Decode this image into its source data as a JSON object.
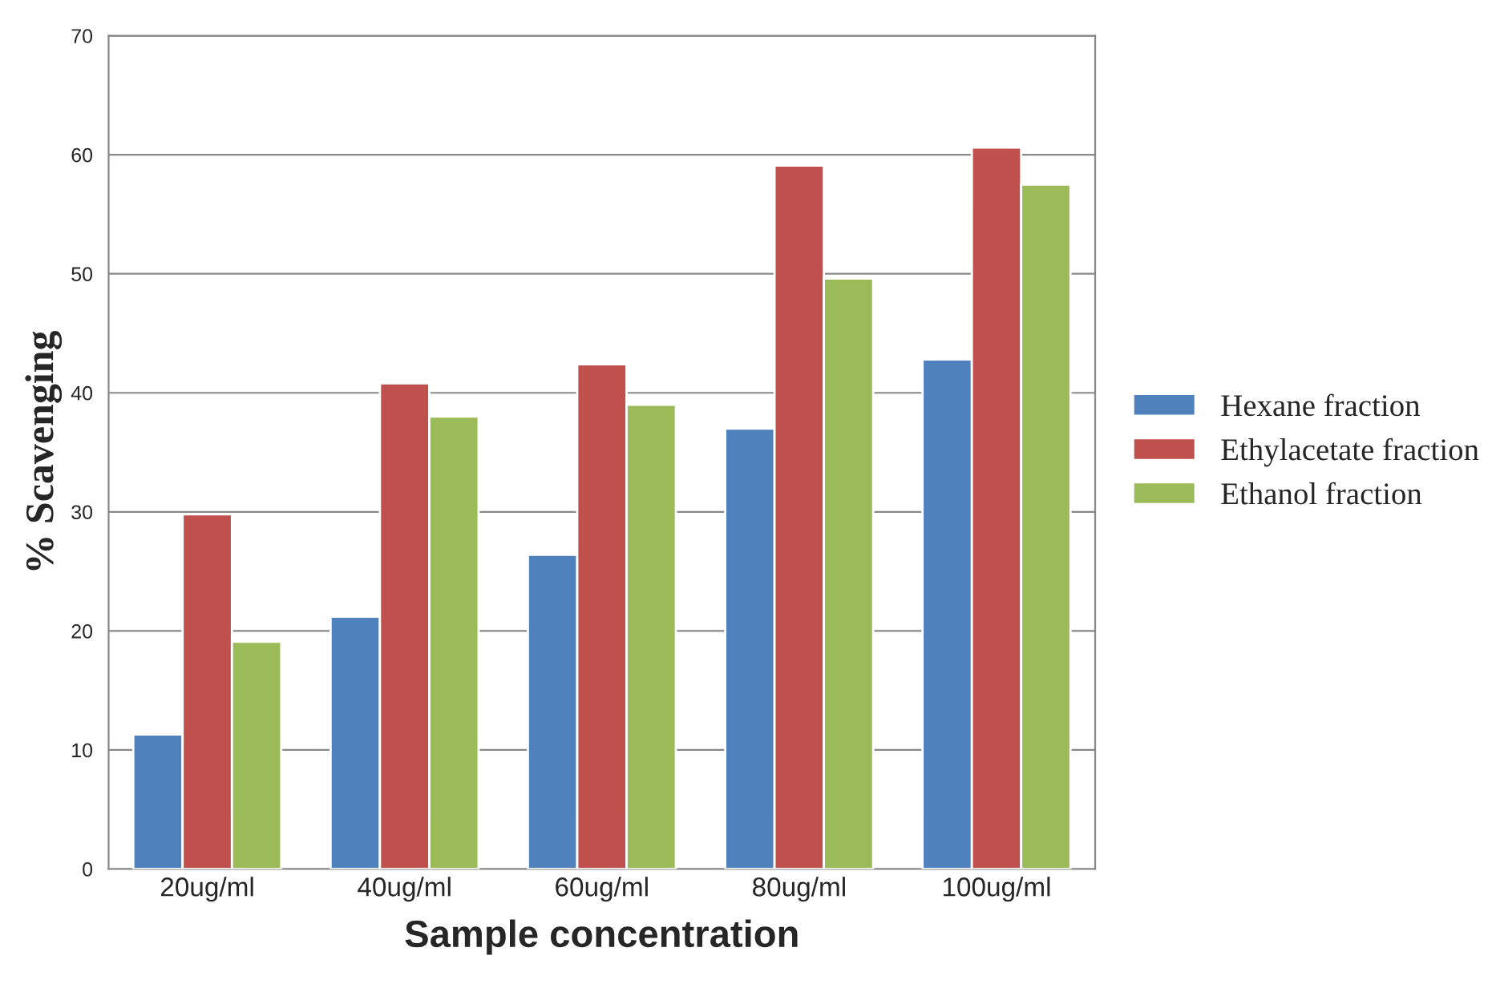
{
  "chart_data": {
    "type": "bar",
    "xlabel": "Sample concentration",
    "ylabel": "% Scavenging",
    "categories": [
      "20ug/ml",
      "40ug/ml",
      "60ug/ml",
      "80ug/ml",
      "100ug/ml"
    ],
    "series": [
      {
        "name": "Hexane fraction",
        "color": "#4f81bd",
        "values": [
          11.3,
          21.2,
          26.4,
          37.0,
          42.8
        ]
      },
      {
        "name": "Ethylacetate fraction",
        "color": "#c0504d",
        "values": [
          29.8,
          40.8,
          42.4,
          59.1,
          60.6
        ]
      },
      {
        "name": "Ethanol fraction",
        "color": "#9bbb59",
        "values": [
          19.1,
          38.0,
          39.0,
          49.6,
          57.5
        ]
      }
    ],
    "ylim": [
      0,
      70
    ],
    "yticks": [
      0,
      10,
      20,
      30,
      40,
      50,
      60,
      70
    ],
    "grid": "y",
    "legend": "right"
  }
}
